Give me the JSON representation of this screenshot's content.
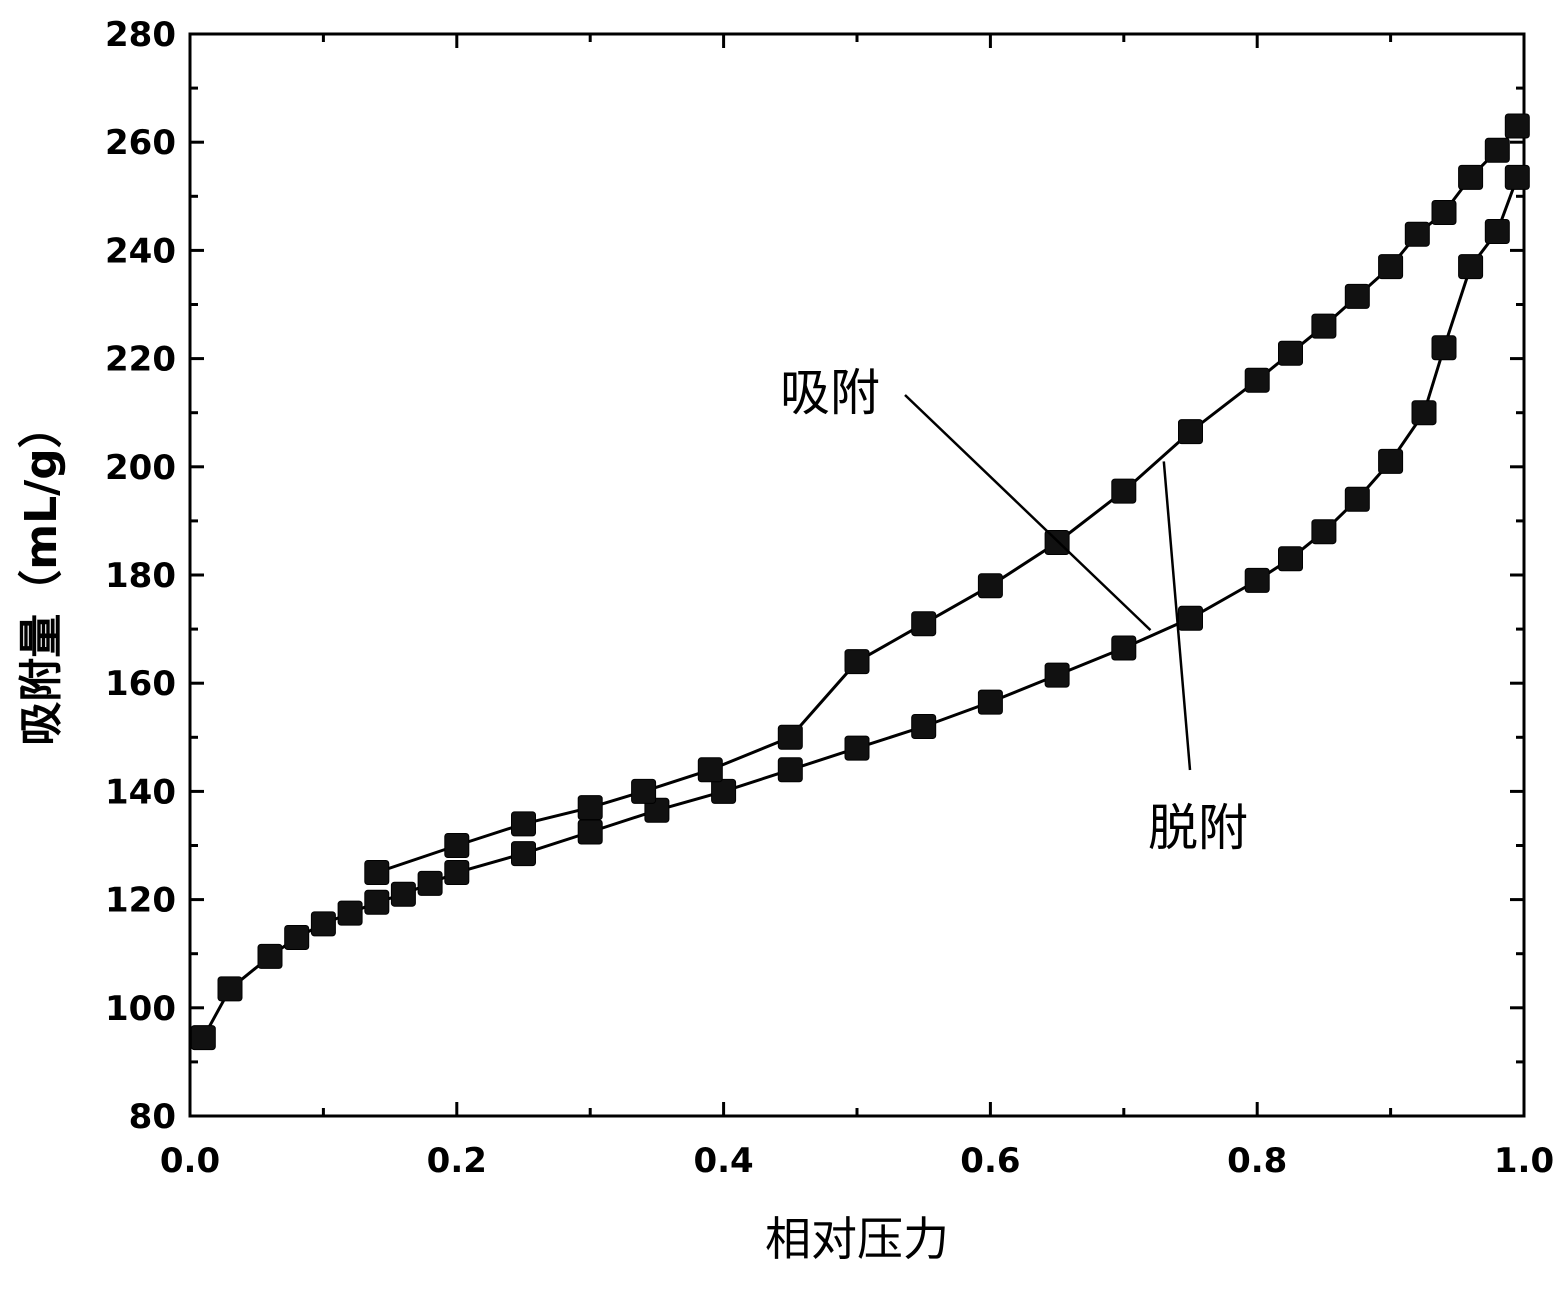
{
  "chart_data": {
    "type": "line",
    "title": "",
    "xlabel": "相对压力",
    "ylabel": "吸附量（mL/g）",
    "xlim": [
      0.0,
      1.0
    ],
    "ylim": [
      80,
      280
    ],
    "x_ticks": [
      "0.0",
      "0.2",
      "0.4",
      "0.6",
      "0.8",
      "1.0"
    ],
    "y_ticks": [
      "80",
      "100",
      "120",
      "140",
      "160",
      "180",
      "200",
      "220",
      "240",
      "260",
      "280"
    ],
    "grid": false,
    "marker": "square",
    "annotations": [
      {
        "text": "吸附",
        "series": 0
      },
      {
        "text": "脱附",
        "series": 1
      }
    ],
    "series": [
      {
        "name": "吸附",
        "x": [
          0.01,
          0.03,
          0.06,
          0.08,
          0.1,
          0.12,
          0.14,
          0.16,
          0.18,
          0.2,
          0.25,
          0.3,
          0.35,
          0.4,
          0.45,
          0.5,
          0.55,
          0.6,
          0.65,
          0.7,
          0.75,
          0.8,
          0.825,
          0.85,
          0.875,
          0.9,
          0.925,
          0.94,
          0.96,
          0.98,
          0.995
        ],
        "y": [
          94.5,
          103.5,
          109.5,
          113,
          115.5,
          117.5,
          119.5,
          121,
          123,
          125,
          128.5,
          132.5,
          136.5,
          140,
          144,
          148,
          152,
          156.5,
          161.5,
          166.5,
          172,
          179,
          183,
          188,
          194,
          201,
          210,
          222,
          237,
          243.5,
          253.5
        ]
      },
      {
        "name": "脱附",
        "x": [
          0.995,
          0.98,
          0.96,
          0.94,
          0.92,
          0.9,
          0.875,
          0.85,
          0.825,
          0.8,
          0.75,
          0.7,
          0.65,
          0.6,
          0.55,
          0.5,
          0.45,
          0.39,
          0.34,
          0.3,
          0.25,
          0.2,
          0.14
        ],
        "y": [
          263,
          258.5,
          253.5,
          247,
          243,
          237,
          231.5,
          226,
          221,
          216,
          206.5,
          195.5,
          186,
          178,
          171,
          164,
          150,
          144,
          140,
          137,
          134,
          130,
          125
        ]
      }
    ]
  }
}
